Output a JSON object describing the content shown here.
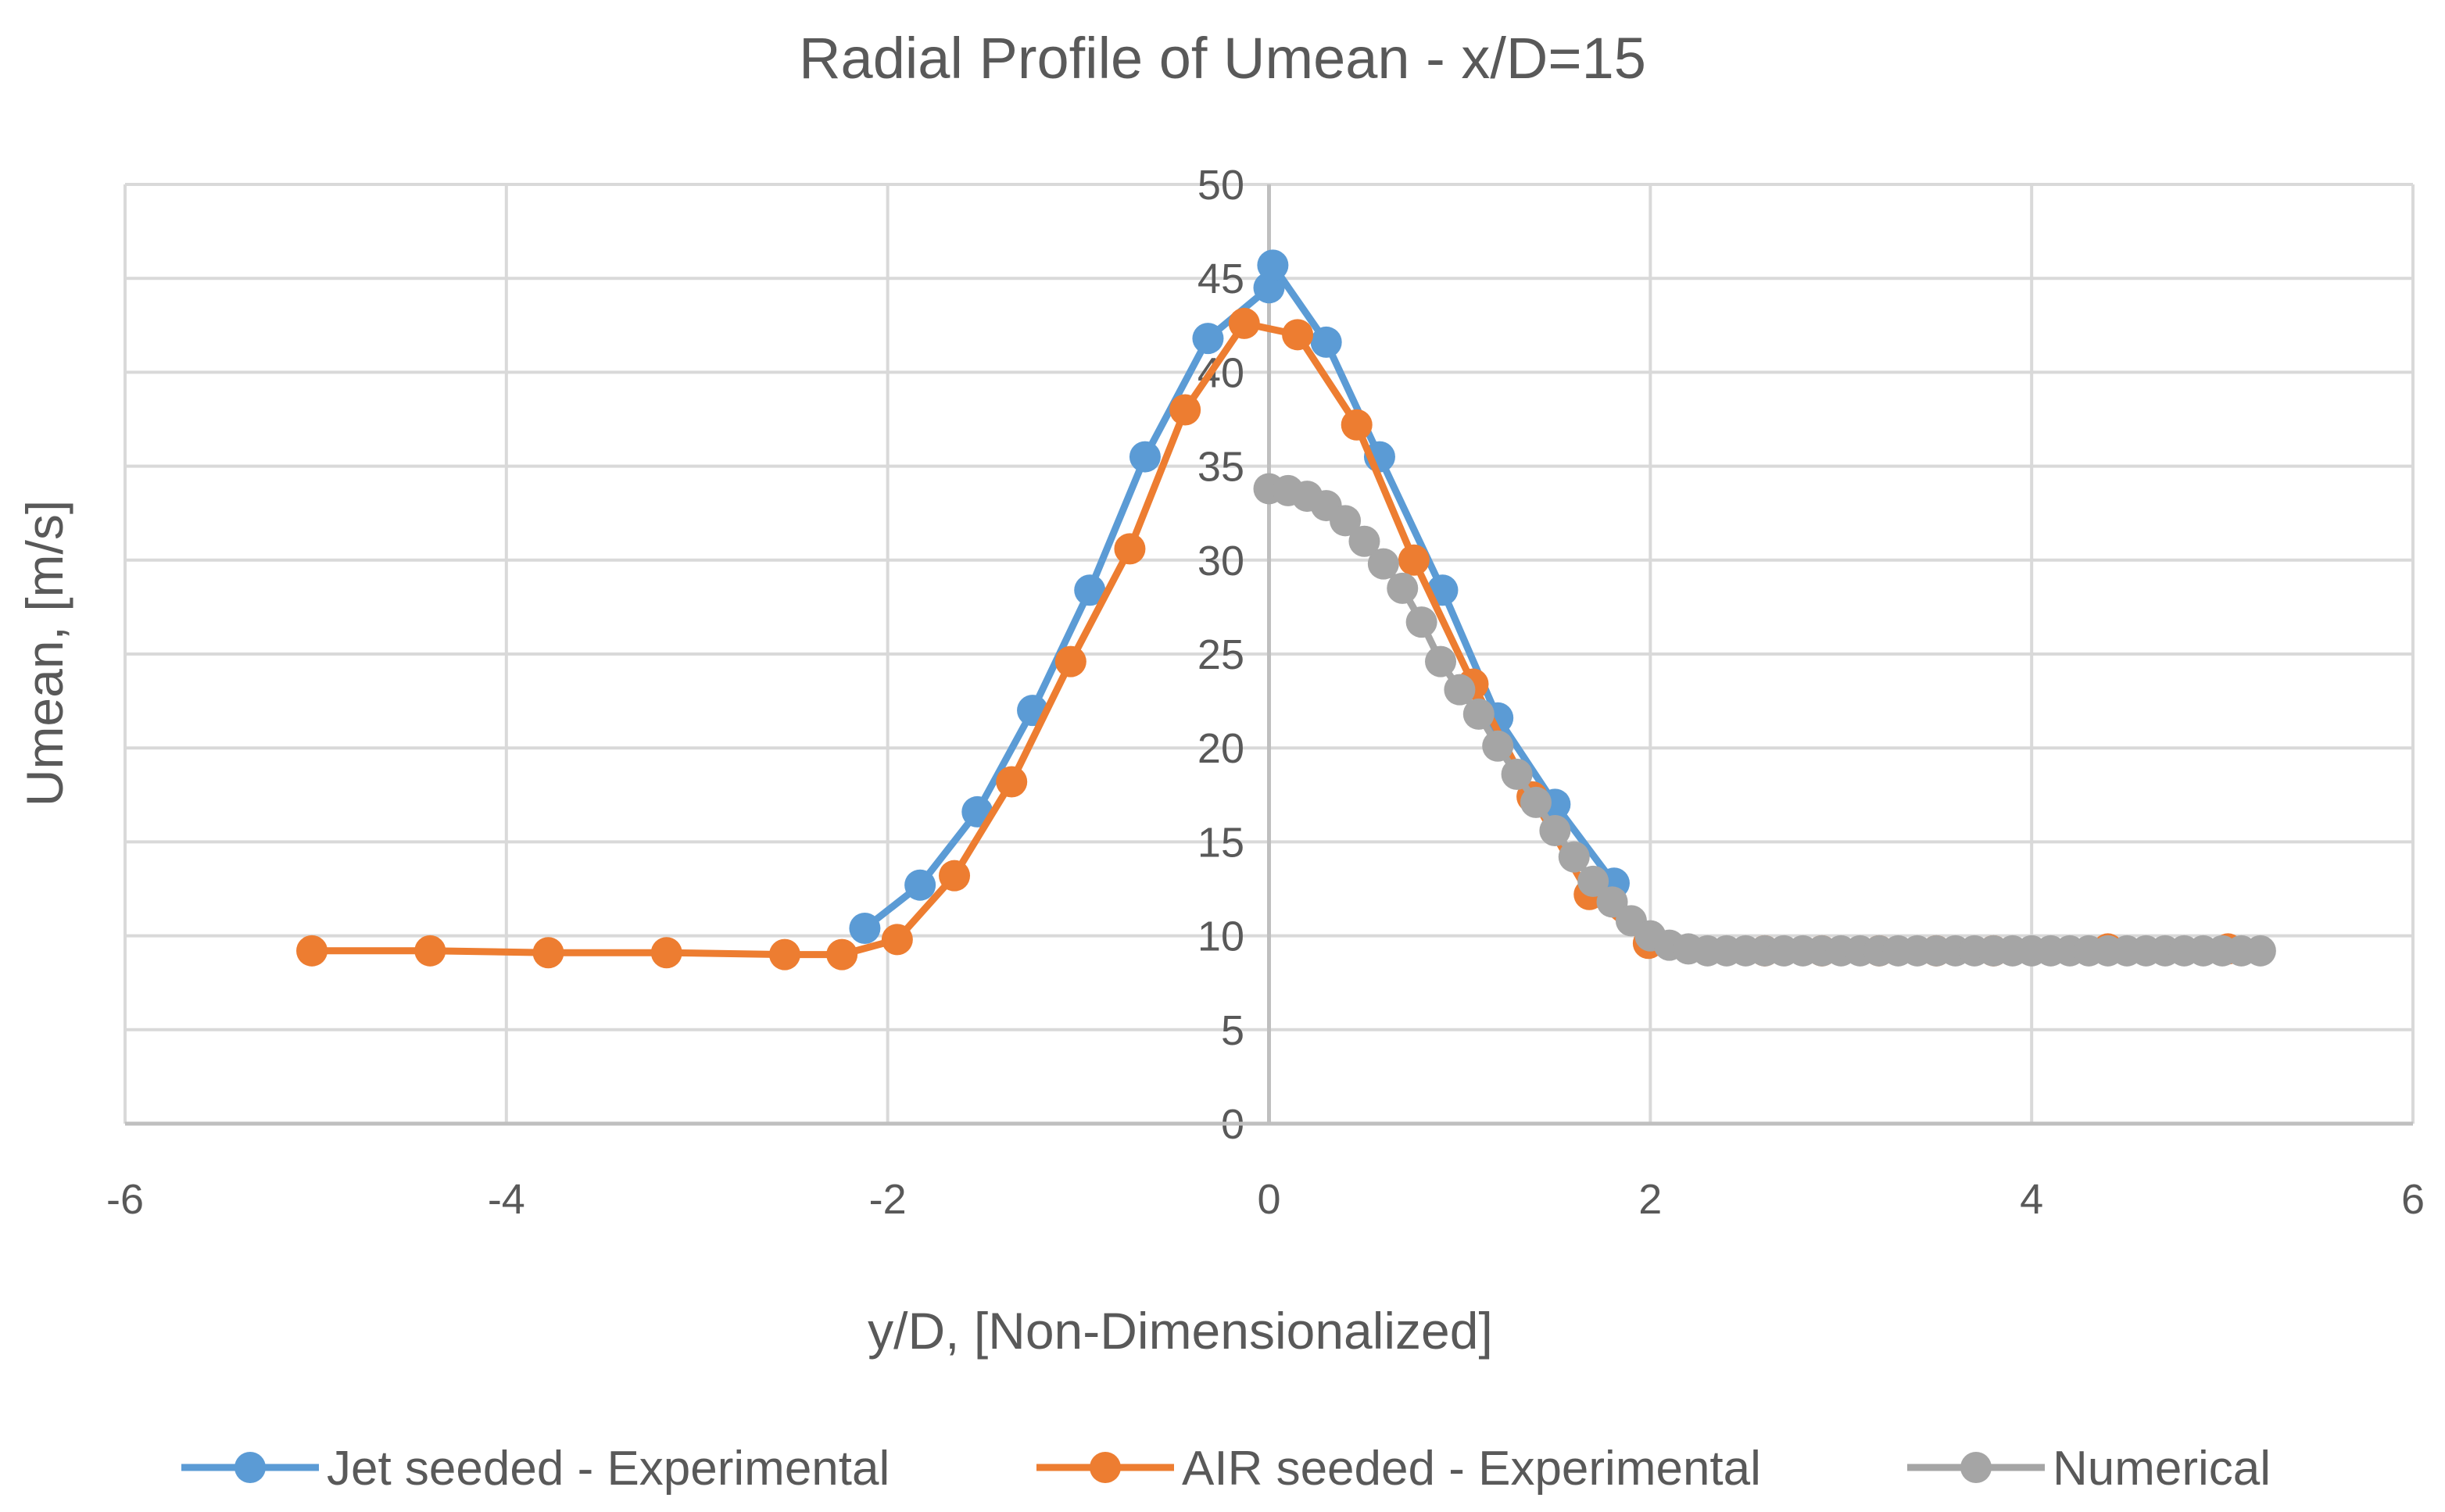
{
  "chart_data": {
    "type": "scatter",
    "title": "Radial Profile of Umean - x/D=15",
    "xlabel": "y/D, [Non-Dimensionalized]",
    "ylabel": "Umean, [m/s]",
    "xlim": [
      -6,
      6
    ],
    "ylim": [
      0,
      50
    ],
    "xticks": [
      -6,
      -4,
      -2,
      0,
      2,
      4,
      6
    ],
    "yticks": [
      0,
      5,
      10,
      15,
      20,
      25,
      30,
      35,
      40,
      45,
      50
    ],
    "grid": true,
    "legend_position": "bottom",
    "series": [
      {
        "name": "Jet seeded - Experimental",
        "color": "#5b9bd5",
        "x": [
          -2.12,
          -1.83,
          -1.53,
          -1.24,
          -0.94,
          -0.65,
          -0.32,
          0.0,
          0.02,
          0.3,
          0.58,
          0.91,
          1.2,
          1.5,
          1.81
        ],
        "y": [
          10.4,
          12.7,
          16.6,
          22.0,
          28.4,
          35.5,
          41.8,
          44.5,
          45.7,
          41.6,
          35.5,
          28.4,
          21.6,
          17.0,
          12.8
        ]
      },
      {
        "name": "AIR seeded - Experimental",
        "color": "#ed7d31",
        "x": [
          -5.02,
          -4.4,
          -3.78,
          -3.16,
          -2.54,
          -2.24,
          -1.95,
          -1.65,
          -1.35,
          -1.04,
          -0.73,
          -0.44,
          -0.13,
          0.15,
          0.46,
          0.76,
          1.07,
          1.38,
          1.68,
          1.99,
          2.6,
          2.9,
          3.2,
          3.5,
          3.8,
          4.4,
          5.03
        ],
        "y": [
          9.2,
          9.2,
          9.1,
          9.1,
          9.0,
          9.0,
          9.8,
          13.2,
          18.2,
          24.6,
          30.6,
          38.0,
          42.6,
          42.0,
          37.2,
          30.0,
          23.4,
          17.4,
          12.2,
          9.6,
          9.2,
          9.2,
          9.2,
          9.2,
          9.2,
          9.3,
          9.3
        ]
      },
      {
        "name": "Numerical",
        "color": "#a5a5a5",
        "x": [
          0.0,
          0.1,
          0.2,
          0.3,
          0.4,
          0.5,
          0.6,
          0.7,
          0.8,
          0.9,
          1.0,
          1.1,
          1.2,
          1.3,
          1.4,
          1.5,
          1.6,
          1.7,
          1.8,
          1.9,
          2.0,
          2.1,
          2.2,
          2.3,
          2.4,
          2.5,
          2.6,
          2.7,
          2.8,
          2.9,
          3.0,
          3.1,
          3.2,
          3.3,
          3.4,
          3.5,
          3.6,
          3.7,
          3.8,
          3.9,
          4.0,
          4.1,
          4.2,
          4.3,
          4.4,
          4.5,
          4.6,
          4.7,
          4.8,
          4.9,
          5.0,
          5.1,
          5.2
        ],
        "y": [
          33.8,
          33.7,
          33.4,
          32.9,
          32.1,
          31.0,
          29.8,
          28.5,
          26.7,
          24.6,
          23.1,
          21.8,
          20.1,
          18.6,
          17.1,
          15.6,
          14.2,
          12.9,
          11.8,
          10.8,
          10.0,
          9.5,
          9.3,
          9.2,
          9.2,
          9.2,
          9.2,
          9.2,
          9.2,
          9.2,
          9.2,
          9.2,
          9.2,
          9.2,
          9.2,
          9.2,
          9.2,
          9.2,
          9.2,
          9.2,
          9.2,
          9.2,
          9.2,
          9.2,
          9.2,
          9.2,
          9.2,
          9.2,
          9.2,
          9.2,
          9.2,
          9.2,
          9.2
        ]
      }
    ]
  }
}
